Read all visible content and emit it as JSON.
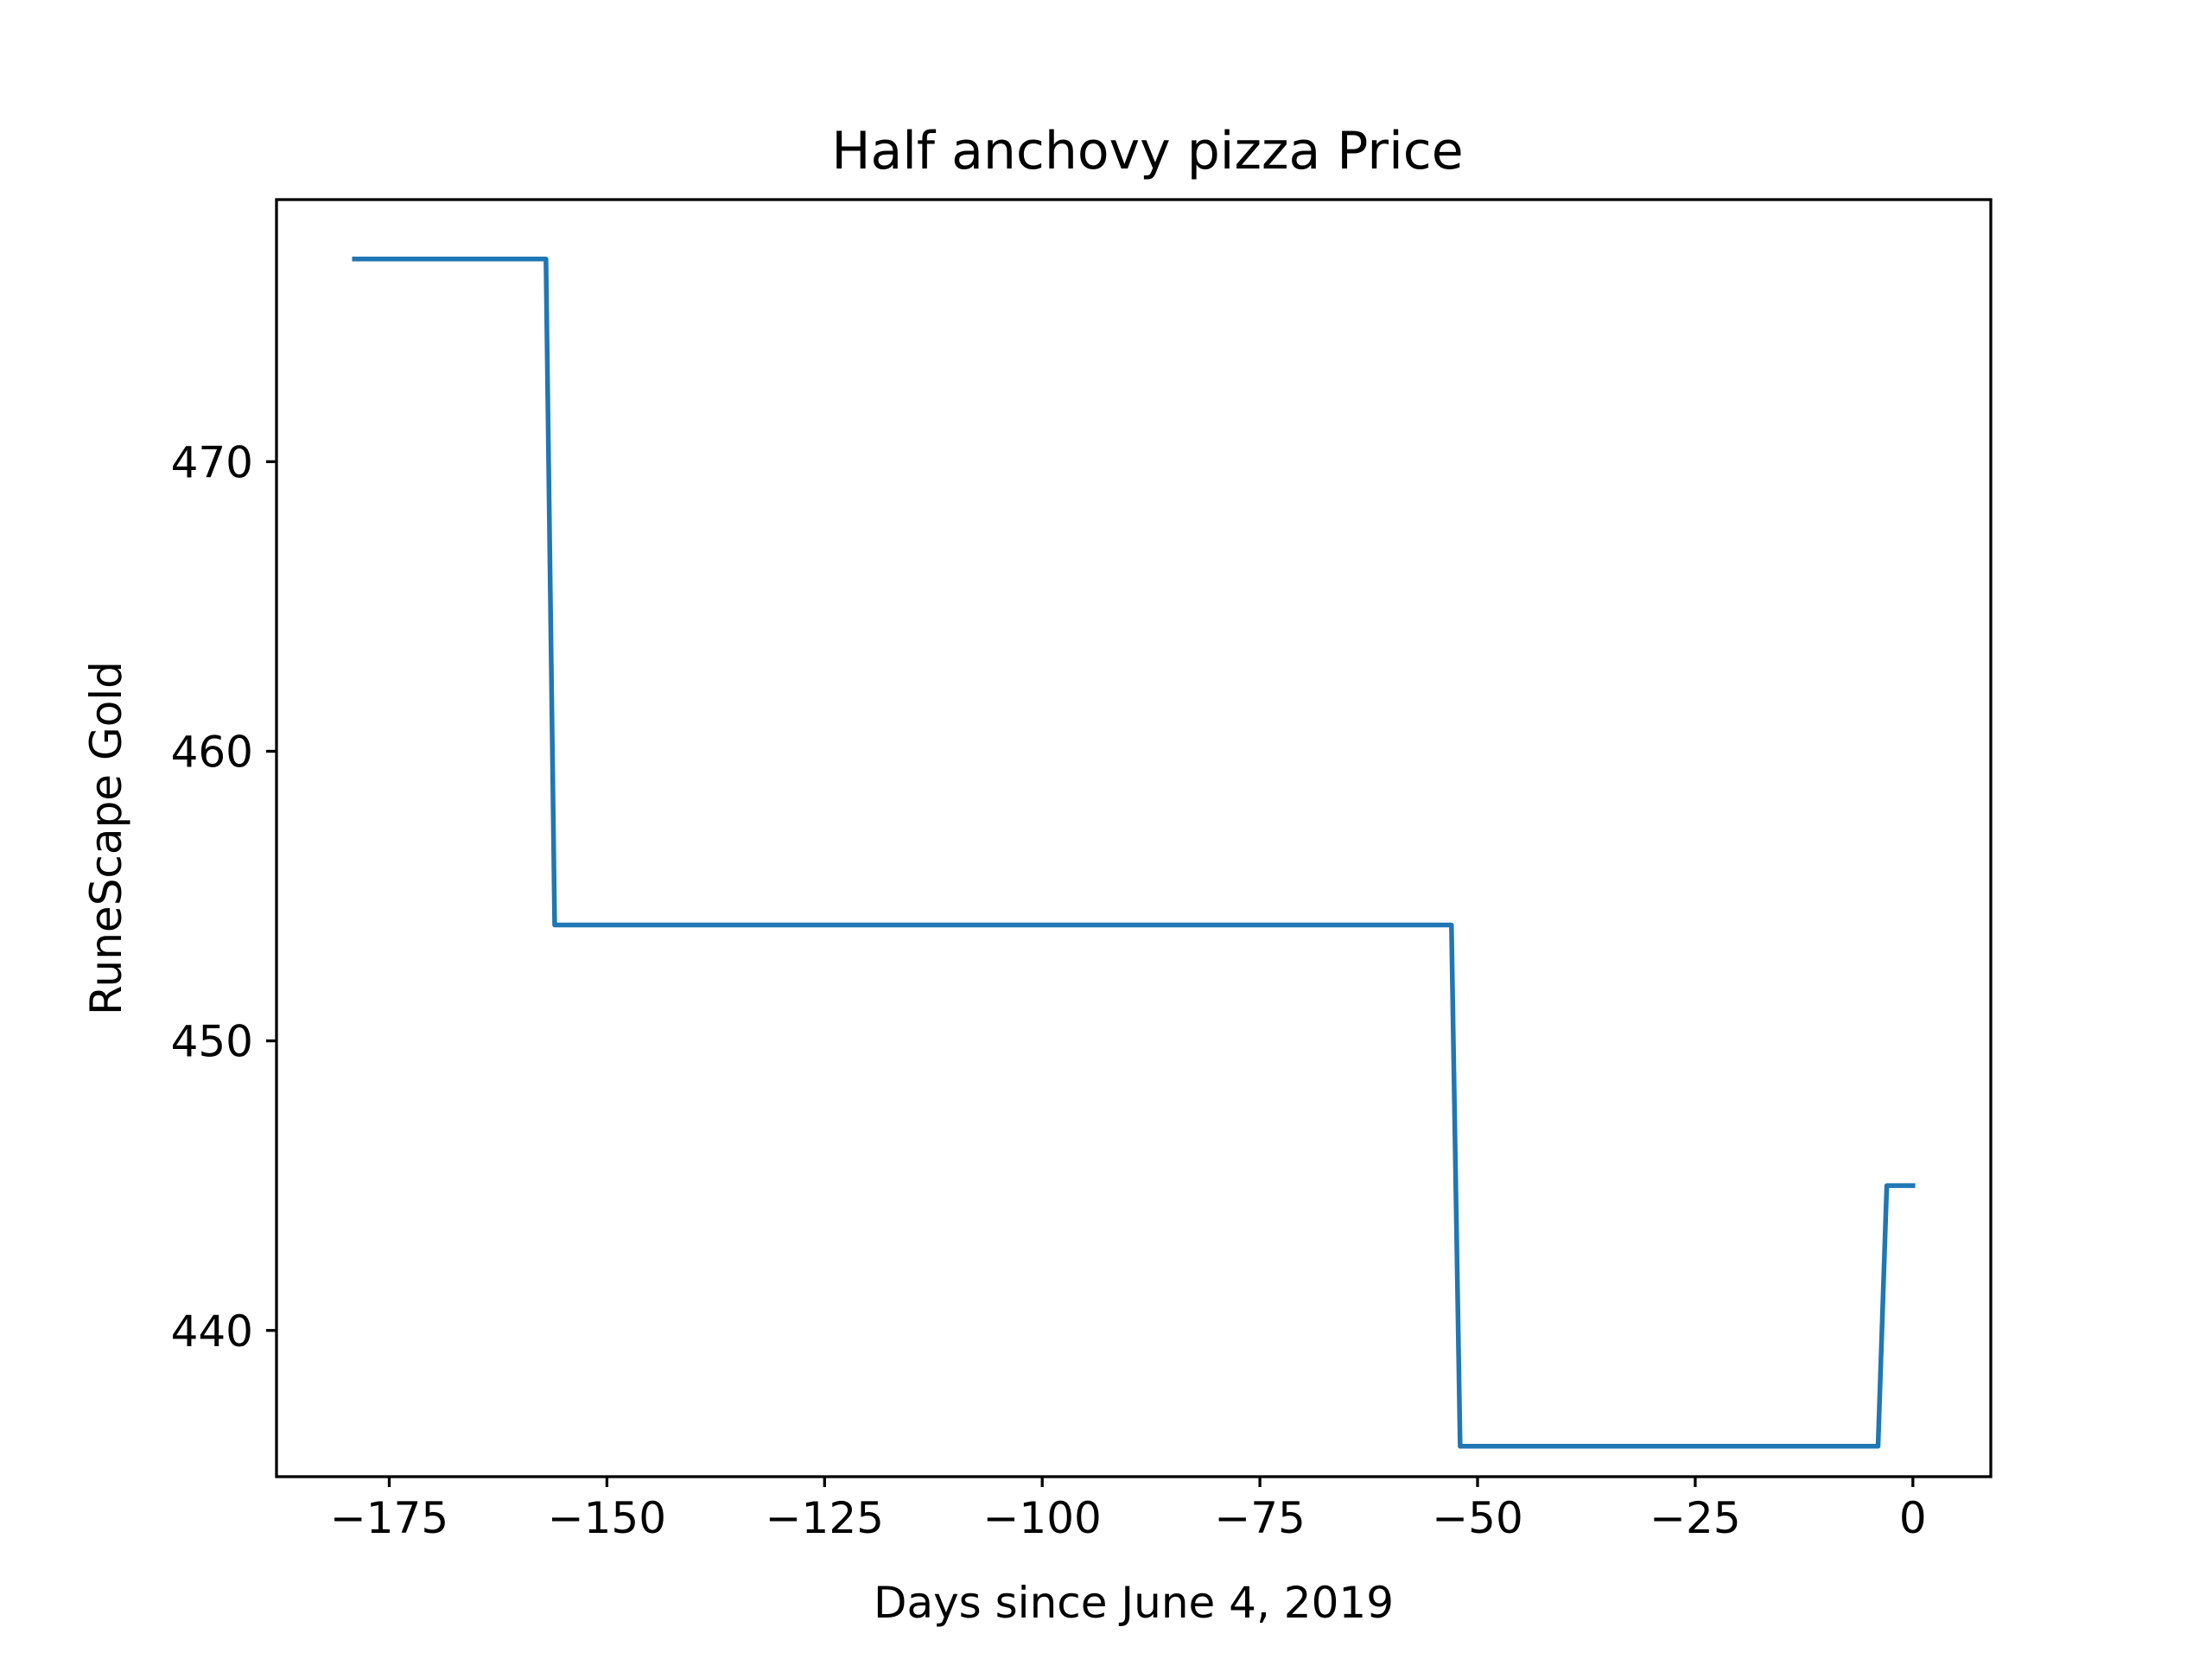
{
  "chart_data": {
    "type": "line",
    "title": "Half anchovy pizza Price",
    "xlabel": "Days since June 4, 2019",
    "ylabel": "RuneScape Gold",
    "xlim": [
      -187.95,
      8.95
    ],
    "ylim": [
      434.95,
      479.05
    ],
    "xticks": [
      -175,
      -150,
      -125,
      -100,
      -75,
      -50,
      -25,
      0
    ],
    "xtick_labels": [
      "−175",
      "−150",
      "−125",
      "−100",
      "−75",
      "−50",
      "−25",
      "0"
    ],
    "yticks": [
      440,
      450,
      460,
      470
    ],
    "ytick_labels": [
      "440",
      "450",
      "460",
      "470"
    ],
    "grid": false,
    "color": "#1f77b4",
    "series": [
      {
        "name": "Half anchovy pizza",
        "x": [
          -179,
          -157,
          -156,
          -53,
          -52,
          -4,
          -3,
          0
        ],
        "y": [
          477,
          477,
          454,
          454,
          436,
          436,
          445,
          445
        ]
      }
    ]
  }
}
